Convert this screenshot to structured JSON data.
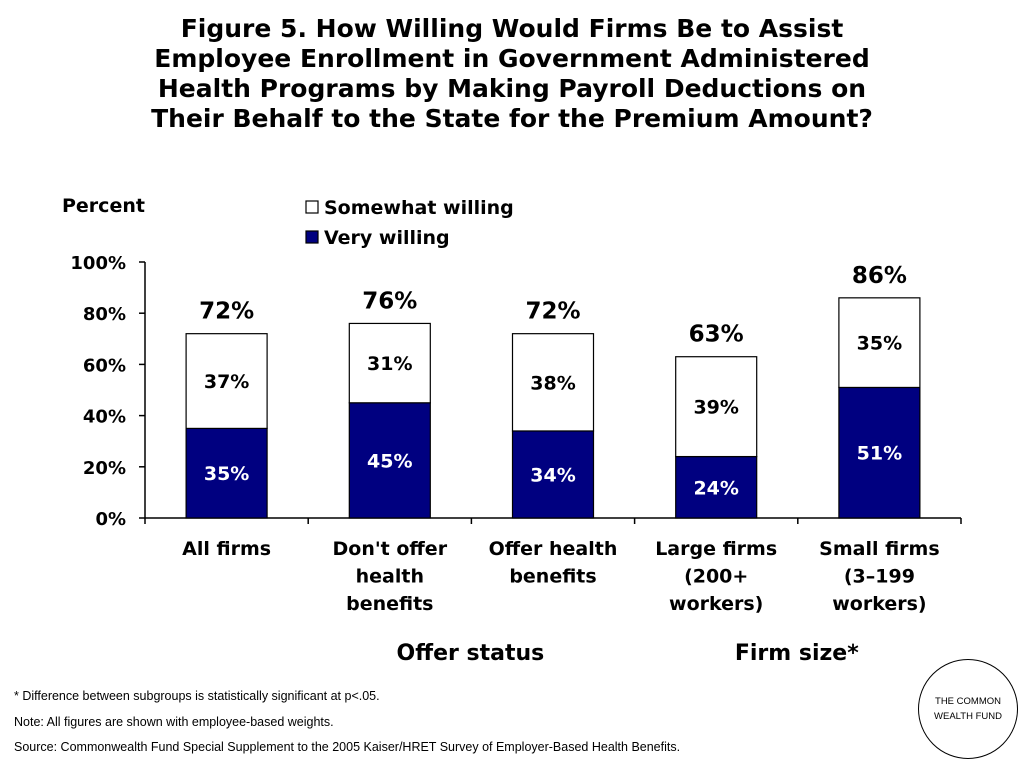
{
  "slide": {
    "title_lines": [
      "Figure 5. How Willing Would Firms Be to Assist",
      "Employee Enrollment in Government Administered",
      "Health Programs by Making Payroll Deductions on",
      "Their Behalf to the State for the Premium Amount?"
    ],
    "footnotes": [
      "* Difference between subgroups is statistically significant at p<.05.",
      "Note: All figures are shown with employee-based weights.",
      "Source: Commonwealth Fund Special Supplement to the 2005 Kaiser/HRET Survey of Employer-Based Health Benefits."
    ],
    "logo_text": "THE COMMONWEALTH FUND"
  },
  "chart_data": {
    "type": "bar",
    "stacked": true,
    "ylabel": "Percent",
    "ylim": [
      0,
      100
    ],
    "yticks": [
      "0%",
      "20%",
      "40%",
      "60%",
      "80%",
      "100%"
    ],
    "categories": [
      "All firms",
      "Don't offer health benefits",
      "Offer health benefits",
      "Large firms (200+ workers)",
      "Small firms (3–199 workers)"
    ],
    "category_lines": [
      [
        "All firms"
      ],
      [
        "Don't offer",
        "health",
        "benefits"
      ],
      [
        "Offer health",
        "benefits"
      ],
      [
        "Large firms",
        "(200+",
        "workers)"
      ],
      [
        "Small firms",
        "(3–199",
        "workers)"
      ]
    ],
    "groups": [
      {
        "label": "Offer status",
        "categories": [
          1,
          2
        ]
      },
      {
        "label": "Firm size*",
        "categories": [
          3,
          4
        ]
      }
    ],
    "series": [
      {
        "name": "Very willing",
        "color": "#000080",
        "values": [
          35,
          45,
          34,
          24,
          51
        ],
        "labels": [
          "35%",
          "45%",
          "34%",
          "24%",
          "51%"
        ]
      },
      {
        "name": "Somewhat willing",
        "color": "#ffffff",
        "values": [
          37,
          31,
          38,
          39,
          35
        ],
        "labels": [
          "37%",
          "31%",
          "38%",
          "39%",
          "35%"
        ]
      }
    ],
    "totals": [
      72,
      76,
      72,
      63,
      86
    ],
    "total_labels": [
      "72%",
      "76%",
      "72%",
      "63%",
      "86%"
    ],
    "legend": "top-center",
    "grid": false
  }
}
